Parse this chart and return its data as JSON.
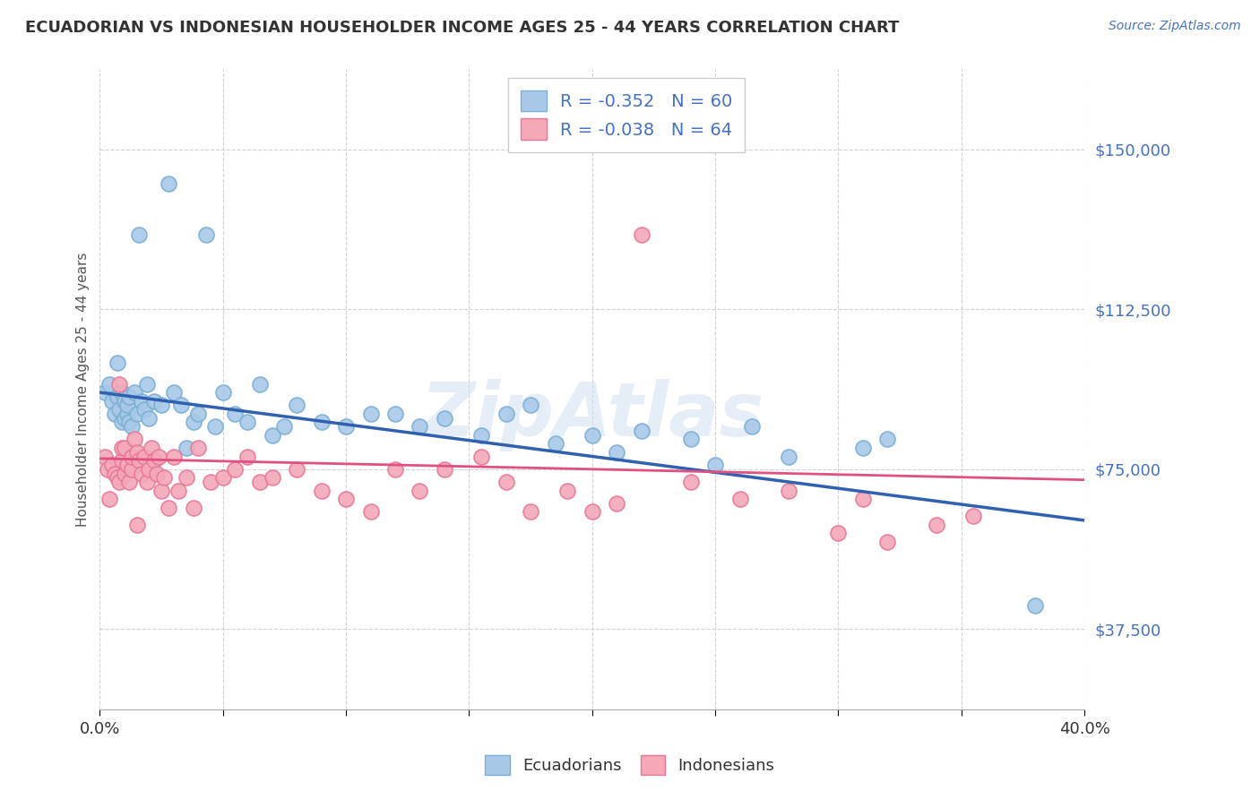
{
  "title": "ECUADORIAN VS INDONESIAN HOUSEHOLDER INCOME AGES 25 - 44 YEARS CORRELATION CHART",
  "source": "Source: ZipAtlas.com",
  "ylabel": "Householder Income Ages 25 - 44 years",
  "xmin": 0.0,
  "xmax": 0.4,
  "ymin": 18750,
  "ymax": 168750,
  "yticks": [
    37500,
    75000,
    112500,
    150000
  ],
  "ytick_labels": [
    "$37,500",
    "$75,000",
    "$112,500",
    "$150,000"
  ],
  "xticks": [
    0.0,
    0.05,
    0.1,
    0.15,
    0.2,
    0.25,
    0.3,
    0.35,
    0.4
  ],
  "xtick_labels": [
    "0.0%",
    "",
    "",
    "",
    "",
    "",
    "",
    "",
    "40.0%"
  ],
  "blue_color": "#a8c8e8",
  "pink_color": "#f4a8b8",
  "blue_edge_color": "#7aafd4",
  "pink_edge_color": "#e87898",
  "blue_line_color": "#3060b0",
  "pink_line_color": "#e05080",
  "legend_label_blue": "R = -0.352   N = 60",
  "legend_label_pink": "R = -0.038   N = 64",
  "watermark": "ZipAtlas",
  "background_color": "#ffffff",
  "grid_color": "#cccccc",
  "title_color": "#333333",
  "axis_label_color": "#555555",
  "blue_scatter_x": [
    0.002,
    0.004,
    0.005,
    0.006,
    0.007,
    0.007,
    0.008,
    0.009,
    0.009,
    0.01,
    0.01,
    0.011,
    0.011,
    0.012,
    0.012,
    0.013,
    0.014,
    0.015,
    0.016,
    0.017,
    0.018,
    0.019,
    0.02,
    0.022,
    0.025,
    0.028,
    0.03,
    0.033,
    0.035,
    0.038,
    0.04,
    0.043,
    0.047,
    0.05,
    0.055,
    0.06,
    0.065,
    0.07,
    0.075,
    0.08,
    0.09,
    0.1,
    0.11,
    0.12,
    0.13,
    0.14,
    0.155,
    0.165,
    0.175,
    0.185,
    0.2,
    0.21,
    0.22,
    0.24,
    0.25,
    0.265,
    0.28,
    0.31,
    0.32,
    0.38
  ],
  "blue_scatter_y": [
    93000,
    95000,
    91000,
    88000,
    100000,
    92000,
    89000,
    93000,
    86000,
    87000,
    91000,
    88000,
    90000,
    86000,
    92000,
    85000,
    93000,
    88000,
    130000,
    91000,
    89000,
    95000,
    87000,
    91000,
    90000,
    142000,
    93000,
    90000,
    80000,
    86000,
    88000,
    130000,
    85000,
    93000,
    88000,
    86000,
    95000,
    83000,
    85000,
    90000,
    86000,
    85000,
    88000,
    88000,
    85000,
    87000,
    83000,
    88000,
    90000,
    81000,
    83000,
    79000,
    84000,
    82000,
    76000,
    85000,
    78000,
    80000,
    82000,
    43000
  ],
  "pink_scatter_x": [
    0.002,
    0.003,
    0.004,
    0.005,
    0.006,
    0.007,
    0.008,
    0.008,
    0.009,
    0.009,
    0.01,
    0.01,
    0.011,
    0.012,
    0.013,
    0.013,
    0.014,
    0.015,
    0.015,
    0.016,
    0.017,
    0.018,
    0.019,
    0.02,
    0.021,
    0.022,
    0.023,
    0.024,
    0.025,
    0.026,
    0.028,
    0.03,
    0.032,
    0.035,
    0.038,
    0.04,
    0.045,
    0.05,
    0.055,
    0.06,
    0.065,
    0.07,
    0.08,
    0.09,
    0.1,
    0.11,
    0.12,
    0.13,
    0.14,
    0.155,
    0.165,
    0.175,
    0.19,
    0.2,
    0.21,
    0.22,
    0.24,
    0.26,
    0.28,
    0.3,
    0.31,
    0.32,
    0.34,
    0.355
  ],
  "pink_scatter_y": [
    78000,
    75000,
    68000,
    76000,
    74000,
    73000,
    72000,
    95000,
    77000,
    80000,
    80000,
    74000,
    76000,
    72000,
    75000,
    78000,
    82000,
    79000,
    62000,
    77000,
    74000,
    78000,
    72000,
    75000,
    80000,
    77000,
    74000,
    78000,
    70000,
    73000,
    66000,
    78000,
    70000,
    73000,
    66000,
    80000,
    72000,
    73000,
    75000,
    78000,
    72000,
    73000,
    75000,
    70000,
    68000,
    65000,
    75000,
    70000,
    75000,
    78000,
    72000,
    65000,
    70000,
    65000,
    67000,
    130000,
    72000,
    68000,
    70000,
    60000,
    68000,
    58000,
    62000,
    64000
  ]
}
